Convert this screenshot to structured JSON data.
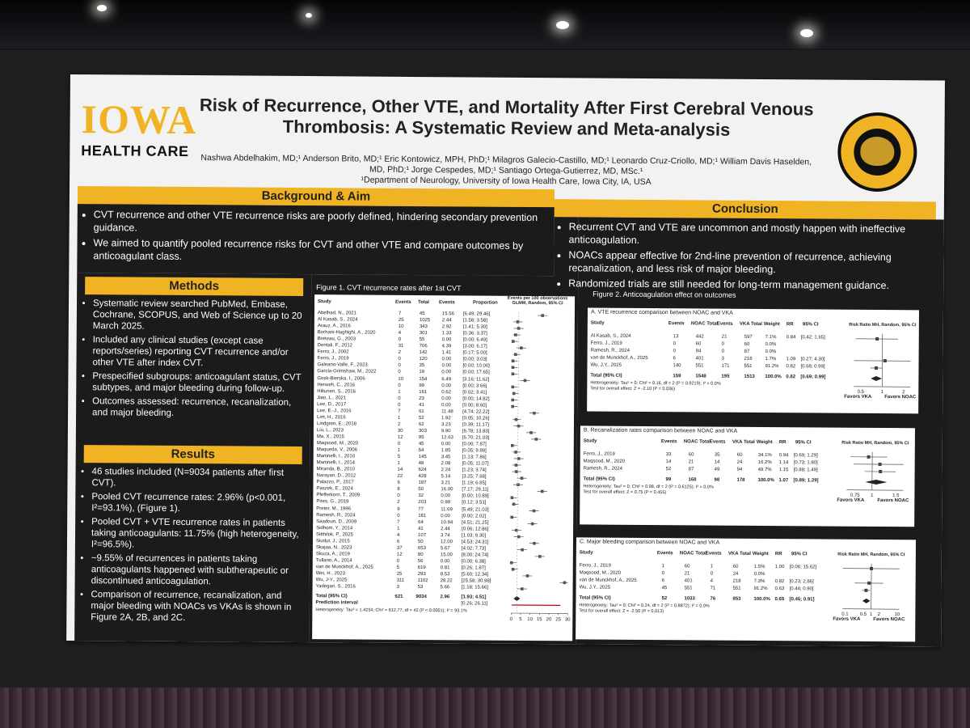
{
  "poster": {
    "logo": {
      "line1": "IOWA",
      "line2": "HEALTH CARE"
    },
    "title": "Risk of Recurrence, Other VTE, and Mortality After First Cerebral Venous Thrombosis: A Systematic Review and Meta-analysis",
    "authors": "Nashwa Abdelhakim, MD;¹ Anderson Brito, MD;¹ Eric Kontowicz, MPH, PhD;¹ Milagros Galecio-Castillo, MD;¹ Leonardo Cruz-Criollo, MD;¹ William Davis Haselden, MD, PhD;¹ Jorge Cespedes, MD;¹ Santiago Ortega-Gutierrez, MD, MSc.¹",
    "affiliation": "¹Department of Neurology, University of Iowa Health Care, Iowa City, IA, USA",
    "seal_text": "CEREBROVASCULAR & NEUROINTERVENTIONAL LABORATORY"
  },
  "background": {
    "heading": "Background & Aim",
    "bullets": [
      "CVT recurrence and other VTE recurrence risks are poorly defined, hindering secondary prevention guidance.",
      "We aimed to quantify pooled recurrence risks for CVT and other VTE and compare outcomes by anticoagulant class."
    ]
  },
  "methods": {
    "heading": "Methods",
    "bullets": [
      "Systematic review searched PubMed, Embase, Cochrane, SCOPUS, and Web of Science up to 20 March 2025.",
      "Included any clinical studies (except case reports/series) reporting CVT recurrence and/or other VTE after index CVT.",
      "Prespecified subgroups: anticoagulant status, CVT subtypes, and major bleeding during follow-up.",
      "Outcomes assessed: recurrence, recanalization, and major bleeding."
    ]
  },
  "results": {
    "heading": "Results",
    "bullets": [
      "46 studies included (N=9034 patients after first CVT).",
      "Pooled CVT recurrence rates: 2.96% (p<0.001, I²=93.1%), (Figure 1).",
      "Pooled CVT + VTE recurrence rates in patients taking anticoagulants: 11.75% (high heterogeneity, I²=96.5%).",
      "~9.55% of recurrences in patients taking anticoagulants happened with subtherapeutic or discontinued anticoagulation.",
      "Comparison of recurrence, recanalization, and major bleeding with NOACs vs VKAs is shown in Figure 2A, 2B, and 2C."
    ]
  },
  "conclusion": {
    "heading": "Conclusion",
    "bullets": [
      "Recurrent CVT and VTE are uncommon and mostly happen with ineffective anticoagulation.",
      "NOACs appear effective for 2nd-line prevention of recurrence, achieving recanalization, and less risk of major bleeding.",
      "Randomized trials are still needed for long-term management guidance."
    ]
  },
  "figure1": {
    "caption": "Figure 1. CVT recurrence rates after 1st CVT",
    "col_study": "Study",
    "col_events": "Events",
    "col_total": "Total",
    "col_ev2": "Events",
    "col_prop": "Proportion",
    "col_right": "Events per 100 observations GLMM, Random, 95% CI",
    "rows": [
      {
        "s": "Abelhad, N., 2021",
        "e": "7",
        "t": "45",
        "r": "15.56",
        "ci": "[6.49; 29.46]",
        "v": 15.56
      },
      {
        "s": "Al Kasab, S., 2024",
        "e": "25",
        "t": "1025",
        "r": "2.44",
        "ci": "[1.58; 3.58]",
        "v": 2.44
      },
      {
        "s": "Arauz, A., 2016",
        "e": "10",
        "t": "343",
        "r": "2.92",
        "ci": "[1.41; 5.30]",
        "v": 2.92
      },
      {
        "s": "Borhani-Haghighi, A., 2020",
        "e": "4",
        "t": "301",
        "r": "1.33",
        "ci": "[0.36; 3.37]",
        "v": 1.33
      },
      {
        "s": "Breteau, G., 2003",
        "e": "0",
        "t": "55",
        "r": "0.00",
        "ci": "[0.00; 6.49]",
        "v": 0
      },
      {
        "s": "Dentali, F., 2012",
        "e": "31",
        "t": "706",
        "r": "4.39",
        "ci": "[3.00; 6.17]",
        "v": 4.39
      },
      {
        "s": "Ferro, J., 2002",
        "e": "2",
        "t": "142",
        "r": "1.41",
        "ci": "[0.17; 5.00]",
        "v": 1.41
      },
      {
        "s": "Ferro, J., 2019",
        "e": "0",
        "t": "120",
        "r": "0.00",
        "ci": "[0.00; 3.03]",
        "v": 0
      },
      {
        "s": "Galeano-Valle, F., 2023",
        "e": "0",
        "t": "35",
        "r": "0.00",
        "ci": "[0.00; 10.00]",
        "v": 0
      },
      {
        "s": "Garcia-Grimshaw, M., 2022",
        "e": "0",
        "t": "19",
        "r": "0.00",
        "ci": "[0.00; 17.65]",
        "v": 0
      },
      {
        "s": "Gosk-Bierska, I., 2006",
        "e": "10",
        "t": "154",
        "r": "6.49",
        "ci": "[3.16; 11.62]",
        "v": 6.49
      },
      {
        "s": "Herweh, C., 2016",
        "e": "0",
        "t": "99",
        "r": "0.00",
        "ci": "[0.00; 3.66]",
        "v": 0
      },
      {
        "s": "Hiltunen, S., 2016",
        "e": "1",
        "t": "161",
        "r": "0.62",
        "ci": "[0.02; 3.41]",
        "v": 0.62
      },
      {
        "s": "Jiao, L., 2021",
        "e": "0",
        "t": "23",
        "r": "0.00",
        "ci": "[0.00; 14.82]",
        "v": 0
      },
      {
        "s": "Lee, D., 2017",
        "e": "0",
        "t": "41",
        "r": "0.00",
        "ci": "[0.00; 8.60]",
        "v": 0
      },
      {
        "s": "Lee, E.-J., 2016",
        "e": "7",
        "t": "61",
        "r": "11.48",
        "ci": "[4.74; 22.22]",
        "v": 11.48
      },
      {
        "s": "Lim, H., 2016",
        "e": "1",
        "t": "52",
        "r": "1.92",
        "ci": "[0.05; 10.26]",
        "v": 1.92
      },
      {
        "s": "Lindgren, E., 2018",
        "e": "2",
        "t": "62",
        "r": "3.23",
        "ci": "[0.39; 11.17]",
        "v": 3.23
      },
      {
        "s": "Liu, L., 2023",
        "e": "30",
        "t": "303",
        "r": "9.90",
        "ci": "[6.78; 13.83]",
        "v": 9.9
      },
      {
        "s": "Ma, X., 2015",
        "e": "12",
        "t": "95",
        "r": "12.63",
        "ci": "[6.70; 21.03]",
        "v": 12.63
      },
      {
        "s": "Maqsood, M., 2020",
        "e": "0",
        "t": "45",
        "r": "0.00",
        "ci": "[0.00; 7.87]",
        "v": 0
      },
      {
        "s": "Maqueda, V., 2006",
        "e": "1",
        "t": "54",
        "r": "1.85",
        "ci": "[0.05; 9.89]",
        "v": 1.85
      },
      {
        "s": "Martinelli, I., 2010",
        "e": "5",
        "t": "145",
        "r": "3.45",
        "ci": "[1.13; 7.86]",
        "v": 3.45
      },
      {
        "s": "Martinelli, I., 2014",
        "e": "1",
        "t": "48",
        "r": "2.08",
        "ci": "[0.05; 11.07]",
        "v": 2.08
      },
      {
        "s": "Miranda, B., 2010",
        "e": "14",
        "t": "624",
        "r": "2.24",
        "ci": "[1.23; 3.74]",
        "v": 2.24
      },
      {
        "s": "Narayan, D., 2012",
        "e": "22",
        "t": "428",
        "r": "5.14",
        "ci": "[3.25; 7.68]",
        "v": 5.14
      },
      {
        "s": "Palazzo, P., 2017",
        "e": "6",
        "t": "187",
        "r": "3.21",
        "ci": "[1.19; 6.85]",
        "v": 3.21
      },
      {
        "s": "Paszek, E., 2024",
        "e": "8",
        "t": "50",
        "r": "16.00",
        "ci": "[7.17; 29.11]",
        "v": 16
      },
      {
        "s": "Pfefferkorn, T., 2009",
        "e": "0",
        "t": "32",
        "r": "0.00",
        "ci": "[0.00; 10.89]",
        "v": 0
      },
      {
        "s": "Pires, G., 2019",
        "e": "2",
        "t": "203",
        "r": "0.99",
        "ci": "[0.12; 3.51]",
        "v": 0.99
      },
      {
        "s": "Preter, M., 1996",
        "e": "9",
        "t": "77",
        "r": "11.69",
        "ci": "[5.49; 21.03]",
        "v": 11.69
      },
      {
        "s": "Ramesh, R., 2024",
        "e": "0",
        "t": "181",
        "r": "0.00",
        "ci": "[0.00; 2.02]",
        "v": 0
      },
      {
        "s": "Saadoun, D., 2009",
        "e": "7",
        "t": "64",
        "r": "10.94",
        "ci": "[4.51; 21.25]",
        "v": 10.94
      },
      {
        "s": "Sidhom, Y., 2014",
        "e": "1",
        "t": "41",
        "r": "2.44",
        "ci": "[0.06; 12.86]",
        "v": 2.44
      },
      {
        "s": "Sitthilok, P., 2025",
        "e": "4",
        "t": "107",
        "r": "3.74",
        "ci": "[1.03; 9.30]",
        "v": 3.74
      },
      {
        "s": "Siudut, J., 2015",
        "e": "6",
        "t": "50",
        "r": "12.00",
        "ci": "[4.53; 24.31]",
        "v": 12
      },
      {
        "s": "Skajaa, N., 2023",
        "e": "37",
        "t": "653",
        "r": "5.67",
        "ci": "[4.02; 7.73]",
        "v": 5.67
      },
      {
        "s": "Skuza, A., 2019",
        "e": "12",
        "t": "80",
        "r": "15.00",
        "ci": "[8.00; 24.74]",
        "v": 15
      },
      {
        "s": "Tullano, A., 2014",
        "e": "0",
        "t": "56",
        "r": "0.00",
        "ci": "[0.00; 6.38]",
        "v": 0
      },
      {
        "s": "van de Munckhof, A., 2025",
        "e": "5",
        "t": "619",
        "r": "0.81",
        "ci": "[0.26; 1.87]",
        "v": 0.81
      },
      {
        "s": "Wei, H., 2023",
        "e": "25",
        "t": "293",
        "r": "8.53",
        "ci": "[5.60; 12.34]",
        "v": 8.53
      },
      {
        "s": "Wu, J-Y., 2025",
        "e": "311",
        "t": "1102",
        "r": "28.22",
        "ci": "[25.58; 30.98]",
        "v": 28.22
      },
      {
        "s": "Yadegari, S., 2016",
        "e": "3",
        "t": "53",
        "r": "5.66",
        "ci": "[1.18; 15.66]",
        "v": 5.66
      }
    ],
    "total": {
      "s": "Total (95% CI)",
      "e": "621",
      "t": "9034",
      "r": "2.96",
      "ci": "[1.93; 4.51]"
    },
    "prediction": {
      "s": "Prediction interval",
      "ci": "[0.26; 26.11]"
    },
    "heterogeneity": "Heterogeneity: Tau² = 1.4234; Chi² = 612.77, df = 42 (P < 0.0001); I² = 93.1%",
    "axis_ticks": [
      "0",
      "5",
      "10",
      "15",
      "20",
      "25",
      "30"
    ]
  },
  "figure2": {
    "caption": "Figure 2. Anticoagulation effect on outcomes",
    "A": {
      "title": "A. VTE recurrence comparison between NOAC and VKA",
      "cols": [
        "Study",
        "Events",
        "NOAC Total",
        "Events",
        "VKA Total",
        "Weight",
        "RR",
        "95% CI",
        "Risk Ratio MH, Random, 95% CI"
      ],
      "rows": [
        {
          "s": "Al Kasab, S., 2024",
          "e1": "13",
          "t1": "442",
          "e2": "21",
          "t2": "597",
          "w": "7.1%",
          "rr": "0.84",
          "ci": "[0.42; 1.65]"
        },
        {
          "s": "Ferro, J., 2019",
          "e1": "0",
          "t1": "60",
          "e2": "0",
          "t2": "60",
          "w": "0.0%",
          "rr": "",
          "ci": ""
        },
        {
          "s": "Ramesh, R., 2024",
          "e1": "0",
          "t1": "94",
          "e2": "0",
          "t2": "87",
          "w": "0.0%",
          "rr": "",
          "ci": ""
        },
        {
          "s": "van de Munckhof, A., 2025",
          "e1": "6",
          "t1": "401",
          "e2": "3",
          "t2": "218",
          "w": "1.7%",
          "rr": "1.09",
          "ci": "[0.27; 4.30]"
        },
        {
          "s": "Wu, J.Y., 2025",
          "e1": "140",
          "t1": "551",
          "e2": "171",
          "t2": "551",
          "w": "91.2%",
          "rr": "0.82",
          "ci": "[0.68; 0.99]"
        }
      ],
      "total": {
        "s": "Total (95% CI)",
        "t1": "1548",
        "t2": "1513",
        "w": "100.0%",
        "rr": "0.82",
        "ci": "[0.69; 0.99]",
        "e1": "159",
        "e2": "195"
      },
      "het": "Heterogeneity: Tau² = 0; Chi² = 0.16, df = 2 (P = 0.9219); I² = 0.0%",
      "test": "Test for overall effect: Z = -2.10 (P = 0.036)",
      "ticks": [
        "0.5",
        "1",
        "2"
      ],
      "favors": [
        "Favors VKA",
        "Favors NOAC"
      ]
    },
    "B": {
      "title": "B. Recanalization rates comparison between NOAC and VKA",
      "rows": [
        {
          "s": "Ferro, J., 2019",
          "e1": "33",
          "t1": "60",
          "e2": "35",
          "t2": "60",
          "w": "34.1%",
          "rr": "0.94",
          "ci": "[0.69; 1.29]"
        },
        {
          "s": "Maqsood, M., 2020",
          "e1": "14",
          "t1": "21",
          "e2": "14",
          "t2": "24",
          "w": "16.2%",
          "rr": "1.14",
          "ci": "[0.73; 1.80]"
        },
        {
          "s": "Ramesh, R., 2024",
          "e1": "52",
          "t1": "87",
          "e2": "49",
          "t2": "94",
          "w": "49.7%",
          "rr": "1.15",
          "ci": "[0.88; 1.49]"
        }
      ],
      "total": {
        "s": "Total (95% CI)",
        "e1": "99",
        "t1": "168",
        "e2": "98",
        "t2": "178",
        "w": "100.0%",
        "rr": "1.07",
        "ci": "[0.89; 1.29]"
      },
      "het": "Heterogeneity: Tau² = 0; Chi² = 0.98, df = 2 (P = 0.6125); I² = 0.0%",
      "test": "Test for overall effect: Z = 0.75 (P = 0.455)",
      "ticks": [
        "0.75",
        "1",
        "1.5"
      ],
      "favors": [
        "Favors VKA",
        "Favors NOAC"
      ]
    },
    "C": {
      "title": "C. Major bleeding comparison between NOAC and VKA",
      "rows": [
        {
          "s": "Ferro, J., 2019",
          "e1": "1",
          "t1": "60",
          "e2": "1",
          "t2": "60",
          "w": "1.5%",
          "rr": "1.00",
          "ci": "[0.06; 15.62]"
        },
        {
          "s": "Maqsood, M., 2020",
          "e1": "0",
          "t1": "21",
          "e2": "0",
          "t2": "24",
          "w": "0.0%",
          "rr": "",
          "ci": ""
        },
        {
          "s": "van de Munckhof, A., 2025",
          "e1": "6",
          "t1": "401",
          "e2": "4",
          "t2": "218",
          "w": "7.3%",
          "rr": "0.82",
          "ci": "[0.23; 2.86]"
        },
        {
          "s": "Wu, J.Y., 2025",
          "e1": "45",
          "t1": "551",
          "e2": "71",
          "t2": "551",
          "w": "91.2%",
          "rr": "0.63",
          "ci": "[0.44; 0.90]"
        }
      ],
      "total": {
        "s": "Total (95% CI)",
        "e1": "52",
        "t1": "1033",
        "e2": "76",
        "t2": "853",
        "w": "100.0%",
        "rr": "0.65",
        "ci": "[0.46; 0.91]"
      },
      "het": "Heterogeneity: Tau² = 0; Chi² = 0.24, df = 2 (P = 0.8872); I² = 0.0%",
      "test": "Test for overall effect: Z = -2.50 (P = 0.013)",
      "ticks": [
        "0.1",
        "0.5",
        "1",
        "2",
        "10"
      ],
      "favors": [
        "Favors VKA",
        "Favors NOAC"
      ]
    }
  }
}
